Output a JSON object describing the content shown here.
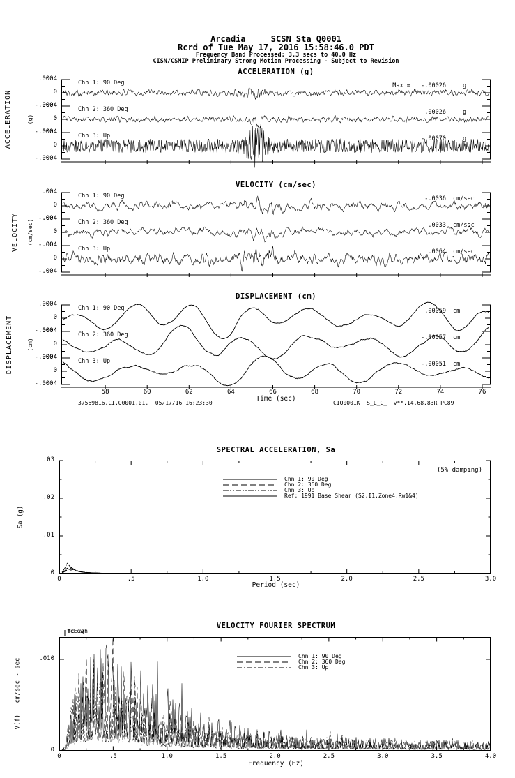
{
  "page": {
    "background": "#ffffff",
    "ink": "#000000"
  },
  "header": {
    "station_line": "Arcadia     SCSN Sta Q0001",
    "record_line": "Rcrd of Tue May 17, 2016 15:58:46.0 PDT",
    "band_line": "Frequency Band Processed: 3.3 secs to 40.0 Hz",
    "disclaimer_line": "CISN/CSMIP Preliminary Strong Motion Processing - Subject to Revision"
  },
  "time_axis": {
    "label": "Time (sec)",
    "tick_labels": [
      "58",
      "60",
      "62",
      "64",
      "66",
      "68",
      "70",
      "72",
      "74",
      "76"
    ],
    "tick_values": [
      58,
      60,
      62,
      64,
      66,
      68,
      70,
      72,
      74,
      76
    ],
    "xmin": 55.9,
    "xmax": 76.4
  },
  "footer": {
    "left": "37569816.CI.Q0001.01.  05/17/16 16:23:30",
    "right": "CIQ0001K  S_L_C_  v**.14.68.83R PC89"
  },
  "chart_data": [
    {
      "type": "line",
      "kind": "time-series-group",
      "title": "ACCELERATION (g)",
      "side_label": "ACCELERATION",
      "side_unit": "(g)",
      "yticks": [
        ".0004",
        "0",
        "-.0004"
      ],
      "ylim_per_channel": [
        -0.0004,
        0.0004
      ],
      "x_range_sec": [
        55.9,
        76.4
      ],
      "series": [
        {
          "name": "Chn 1: 90 Deg",
          "max_label": "Max =   -.00026",
          "max_value": -0.00026,
          "unit": "g",
          "gen": {
            "type": "noise",
            "seed": 101,
            "smooth": 1,
            "amp": 0.3,
            "burst_t": 65.2,
            "burst_w": 0.5,
            "burst_gain": 1.4
          }
        },
        {
          "name": "Chn 2: 360 Deg",
          "max_label": ".00026",
          "max_value": 0.00026,
          "unit": "g",
          "gen": {
            "type": "noise",
            "seed": 102,
            "smooth": 1,
            "amp": 0.28,
            "burst_t": 65.3,
            "burst_w": 0.4,
            "burst_gain": 1.6
          }
        },
        {
          "name": "Chn 3: Up",
          "max_label": "-.00070",
          "max_value": -0.0007,
          "unit": "g",
          "gen": {
            "type": "noise",
            "seed": 103,
            "smooth": 0,
            "amp": 0.52,
            "burst_t": 65.2,
            "burst_w": 0.45,
            "burst_gain": 2.4
          }
        }
      ]
    },
    {
      "type": "line",
      "kind": "time-series-group",
      "title": "VELOCITY (cm/sec)",
      "side_label": "VELOCITY",
      "side_unit": "(cm/sec)",
      "yticks": [
        ".004",
        "0",
        "-.004"
      ],
      "ylim_per_channel": [
        -0.004,
        0.004
      ],
      "x_range_sec": [
        55.9,
        76.4
      ],
      "series": [
        {
          "name": "Chn 1: 90 Deg",
          "max_label": "-.0036",
          "max_value": -0.0036,
          "unit": "cm/sec",
          "gen": {
            "type": "noise",
            "seed": 111,
            "smooth": 3,
            "amp": 0.55,
            "burst_t": 65.4,
            "burst_w": 1.2,
            "burst_gain": 0.7
          }
        },
        {
          "name": "Chn 2: 360 Deg",
          "max_label": ".0033",
          "max_value": 0.0033,
          "unit": "cm/sec",
          "gen": {
            "type": "noise",
            "seed": 112,
            "smooth": 3,
            "amp": 0.5,
            "burst_t": 65.5,
            "burst_w": 1.0,
            "burst_gain": 0.8
          }
        },
        {
          "name": "Chn 3: Up",
          "max_label": ".0064",
          "max_value": 0.0064,
          "unit": "cm/sec",
          "gen": {
            "type": "noise",
            "seed": 113,
            "smooth": 2,
            "amp": 0.62,
            "burst_t": 65.3,
            "burst_w": 0.8,
            "burst_gain": 1.6
          }
        }
      ]
    },
    {
      "type": "line",
      "kind": "time-series-group",
      "title": "DISPLACEMENT (cm)",
      "side_label": "DISPLACEMENT",
      "side_unit": "(cm)",
      "yticks": [
        ".0004",
        "0",
        "-.0004"
      ],
      "ylim_per_channel": [
        -0.0004,
        0.0004
      ],
      "x_range_sec": [
        55.9,
        76.4
      ],
      "series": [
        {
          "name": "Chn 1: 90 Deg",
          "max_label": ".00059",
          "max_value": 0.00059,
          "unit": "cm",
          "gen": {
            "type": "waves",
            "seed": 121,
            "p1": 2.8,
            "p2": 6.5,
            "a1": 1.0,
            "a2": 0.5,
            "na": 0.15
          }
        },
        {
          "name": "Chn 2: 360 Deg",
          "max_label": "-.00057",
          "max_value": -0.00057,
          "unit": "cm",
          "gen": {
            "type": "waves",
            "seed": 122,
            "p1": 3.0,
            "p2": 7.0,
            "a1": 0.95,
            "a2": 0.5,
            "na": 0.15
          }
        },
        {
          "name": "Chn 3: Up",
          "max_label": "-.00051",
          "max_value": -0.00051,
          "unit": "cm",
          "gen": {
            "type": "waves",
            "seed": 123,
            "p1": 3.2,
            "p2": 6.0,
            "a1": 0.85,
            "a2": 0.45,
            "na": 0.15
          }
        }
      ]
    },
    {
      "type": "line",
      "kind": "response-spectrum",
      "title": "SPECTRAL ACCELERATION, Sa",
      "annotation": "(5% damping)",
      "xlabel": "Period (sec)",
      "ylabel": "Sa (g)",
      "xlim": [
        0,
        3.0
      ],
      "ylim": [
        0,
        0.03
      ],
      "xticks": [
        "0",
        ".5",
        "1.0",
        "1.5",
        "2.0",
        "2.5",
        "3.0"
      ],
      "yticks": [
        ".03",
        ".02",
        ".01",
        "0"
      ],
      "legend": [
        {
          "label": "Chn 1: 90 Deg",
          "style": "solid"
        },
        {
          "label": "Chn 2: 360 Deg",
          "style": "long-dash"
        },
        {
          "label": "Chn 3: Up",
          "style": "dash-dot-dot"
        },
        {
          "label": "Ref: 1991 Base Shear (S2,I1,Zone4,Rw1&4)",
          "style": "solid"
        }
      ],
      "series": [
        {
          "name": "Chn 1: 90 Deg",
          "dash": "",
          "points": [
            [
              0.02,
              0.0002
            ],
            [
              0.04,
              0.0008
            ],
            [
              0.055,
              0.0014
            ],
            [
              0.07,
              0.0011
            ],
            [
              0.085,
              0.0016
            ],
            [
              0.1,
              0.0012
            ],
            [
              0.12,
              0.0007
            ],
            [
              0.15,
              0.00045
            ],
            [
              0.18,
              0.0003
            ],
            [
              0.22,
              0.0002
            ],
            [
              0.28,
              0.00012
            ],
            [
              0.35,
              8e-05
            ],
            [
              0.5,
              5e-05
            ],
            [
              0.8,
              3e-05
            ],
            [
              1.5,
              2e-05
            ],
            [
              3.0,
              1e-05
            ]
          ]
        },
        {
          "name": "Chn 2: 360 Deg",
          "dash": "8,5",
          "points": [
            [
              0.02,
              0.00015
            ],
            [
              0.045,
              0.0007
            ],
            [
              0.065,
              0.0012
            ],
            [
              0.08,
              0.0009
            ],
            [
              0.1,
              0.0011
            ],
            [
              0.13,
              0.0006
            ],
            [
              0.17,
              0.00035
            ],
            [
              0.22,
              0.0002
            ],
            [
              0.3,
              0.0001
            ],
            [
              0.5,
              5e-05
            ],
            [
              1.0,
              3e-05
            ],
            [
              3.0,
              1e-05
            ]
          ]
        },
        {
          "name": "Chn 3: Up",
          "dash": "8,2,2,2,2,2",
          "points": [
            [
              0.02,
              0.0004
            ],
            [
              0.04,
              0.0015
            ],
            [
              0.055,
              0.0027
            ],
            [
              0.07,
              0.0021
            ],
            [
              0.09,
              0.0013
            ],
            [
              0.12,
              0.0008
            ],
            [
              0.16,
              0.0004
            ],
            [
              0.22,
              0.0002
            ],
            [
              0.3,
              0.0001
            ],
            [
              0.5,
              4e-05
            ],
            [
              1.0,
              2e-05
            ],
            [
              3.0,
              1e-05
            ]
          ]
        },
        {
          "name": "Ref: 1991 Base Shear (S2,I1,Zone4,Rw1&4)",
          "dash": "",
          "points": []
        }
      ]
    },
    {
      "type": "line",
      "kind": "fourier-spectrum",
      "title": "VELOCITY FOURIER SPECTRUM",
      "corner_labels": [
        "fcLow",
        "fcHigh"
      ],
      "xlabel": "Frequency (Hz)",
      "ylabel": "V(f)   cm/sec - sec",
      "xlim": [
        0,
        4.0
      ],
      "ylim": [
        0,
        0.01244
      ],
      "xticks": [
        "0",
        ".5",
        "1.0",
        "1.5",
        "2.0",
        "2.5",
        "3.0",
        "3.5",
        "4.0"
      ],
      "ytick_labels": [
        ".010",
        "0"
      ],
      "legend": [
        {
          "label": "Chn 1: 90 Deg",
          "style": "solid"
        },
        {
          "label": "Chn 2: 360 Deg",
          "style": "long-dash"
        },
        {
          "label": "Chn 3: Up",
          "style": "dash-dot-dot"
        }
      ],
      "series": [
        {
          "name": "Chn 1: 90 Deg",
          "dash": "",
          "gen": {
            "seed": 201,
            "peak": 0.0093,
            "f0": 0.38
          }
        },
        {
          "name": "Chn 2: 360 Deg",
          "dash": "8,5",
          "gen": {
            "seed": 202,
            "peak": 0.0082,
            "f0": 0.32
          }
        },
        {
          "name": "Chn 3: Up",
          "dash": "7,3,2,3",
          "gen": {
            "seed": 203,
            "peak": 0.0062,
            "f0": 0.3
          }
        }
      ]
    }
  ]
}
